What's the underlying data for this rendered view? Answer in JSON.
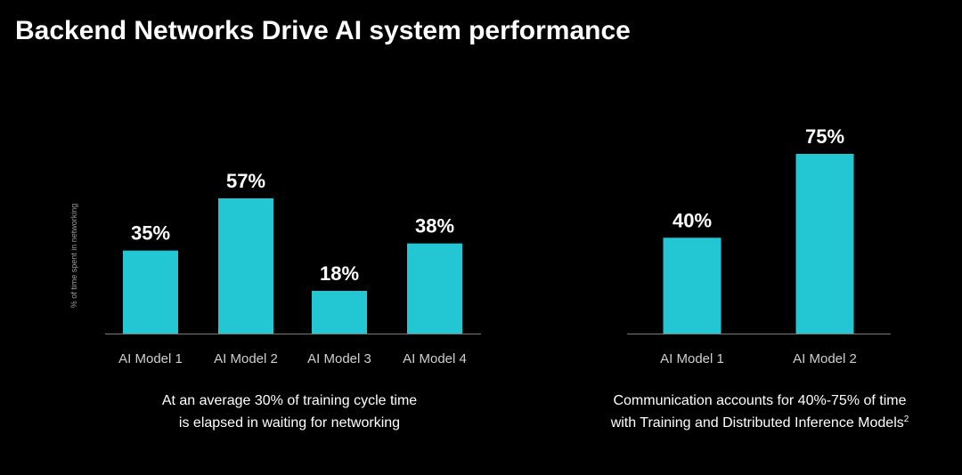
{
  "title": "Backend Networks Drive AI system performance",
  "colors": {
    "background": "#000000",
    "bar": "#22c7d3",
    "axis": "#7a7a7a",
    "text": "#ffffff",
    "tick_label": "#cfcfcf",
    "ylabel": "#9a9a9a"
  },
  "chart_data": [
    {
      "type": "bar",
      "categories": [
        "AI Model 1",
        "AI Model 2",
        "AI Model 3",
        "AI Model 4"
      ],
      "values": [
        35,
        57,
        18,
        38
      ],
      "data_labels": [
        "35%",
        "57%",
        "18%",
        "38%"
      ],
      "ylabel": "% of time spent in networking",
      "xlabel": "",
      "ylim": [
        0,
        60
      ],
      "grid": false,
      "caption_line1": "At an average 30% of training cycle time",
      "caption_line2": "is elapsed in waiting for networking"
    },
    {
      "type": "bar",
      "categories": [
        "AI Model 1",
        "AI Model 2"
      ],
      "values": [
        40,
        75
      ],
      "data_labels": [
        "40%",
        "75%"
      ],
      "ylabel": "",
      "xlabel": "",
      "ylim": [
        0,
        75
      ],
      "grid": false,
      "caption_line1": "Communication accounts for 40%-75% of time",
      "caption_line2": "with Training and Distributed Inference Models",
      "caption_superscript": "2"
    }
  ]
}
